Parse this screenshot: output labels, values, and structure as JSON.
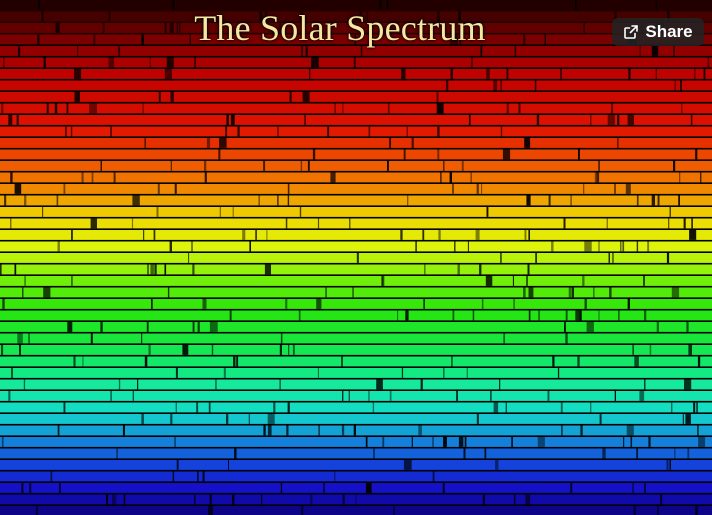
{
  "image": {
    "title": "The Solar Spectrum"
  },
  "share_button": {
    "label": "Share",
    "icon": "share-icon"
  },
  "colors": {
    "title_text": "#f3e7a1",
    "button_background": "#232323",
    "button_text": "#ffffff"
  }
}
